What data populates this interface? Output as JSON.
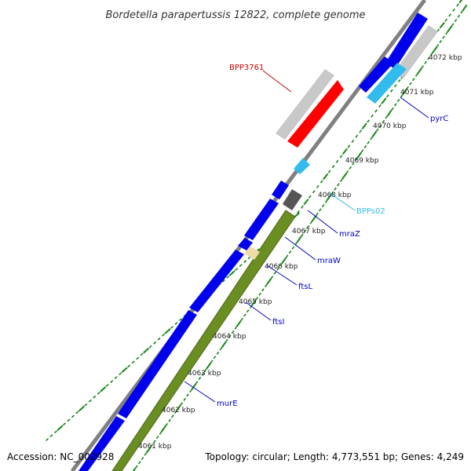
{
  "title": "Bordetella parapertussis 12822, complete genome",
  "accession": "Accession: NC_002928",
  "topology": "Topology: circular; Length: 4,773,551 bp; Genes: 4,249",
  "colors": {
    "backbone": "#808080",
    "forward_cds": "#0000ee",
    "reverse_cds": "#c8c8c8",
    "rna": "#33bbee",
    "highlight": "#ff0000",
    "operon": "#6b8e23",
    "operon_edge": "#4a6616",
    "misc": "#555555",
    "misc_light": "#eeddaa",
    "tick": "#118811"
  },
  "kbp_labels": [
    "4061 kbp",
    "4062 kbp",
    "4063 kbp",
    "4064 kbp",
    "4065 kbp",
    "4066 kbp",
    "4067 kbp",
    "4068 kbp",
    "4069 kbp",
    "4070 kbp",
    "4071 kbp",
    "4072 kbp"
  ],
  "genes": [
    {
      "name": "BPP3761",
      "color": "#cc0000"
    },
    {
      "name": "pyrC",
      "color": "#0000cc"
    },
    {
      "name": "BPPs02",
      "color": "#33bbee"
    },
    {
      "name": "mraZ",
      "color": "#0000cc"
    },
    {
      "name": "mraW",
      "color": "#0000cc"
    },
    {
      "name": "ftsL",
      "color": "#0000cc"
    },
    {
      "name": "ftsI",
      "color": "#0000cc"
    },
    {
      "name": "murE",
      "color": "#0000cc"
    }
  ]
}
